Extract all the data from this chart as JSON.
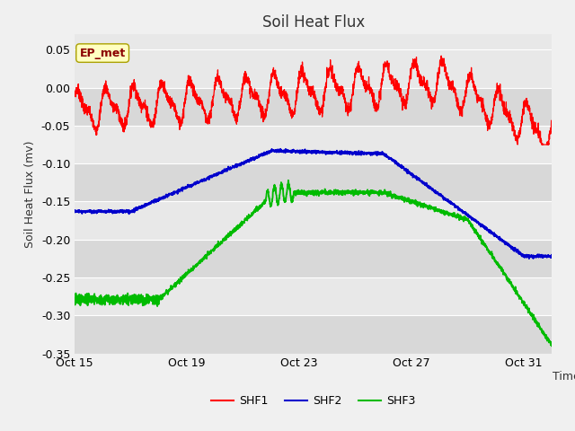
{
  "title": "Soil Heat Flux",
  "xlabel": "Time",
  "ylabel": "Soil Heat Flux (mv)",
  "ylim": [
    -0.35,
    0.07
  ],
  "yticks": [
    0.05,
    0.0,
    -0.05,
    -0.1,
    -0.15,
    -0.2,
    -0.25,
    -0.3,
    -0.35
  ],
  "xtick_labels": [
    "Oct 15",
    "Oct 19",
    "Oct 23",
    "Oct 27",
    "Oct 31"
  ],
  "xtick_positions": [
    0,
    4,
    8,
    12,
    16
  ],
  "xlim": [
    0,
    17
  ],
  "colors": {
    "SHF1": "#ff0000",
    "SHF2": "#0000cc",
    "SHF3": "#00bb00"
  },
  "fig_bg": "#f0f0f0",
  "band_colors": [
    "#e8e8e8",
    "#d8d8d8"
  ],
  "grid_color": "#ffffff",
  "annotation_text": "EP_met",
  "legend_labels": [
    "SHF1",
    "SHF2",
    "SHF3"
  ]
}
